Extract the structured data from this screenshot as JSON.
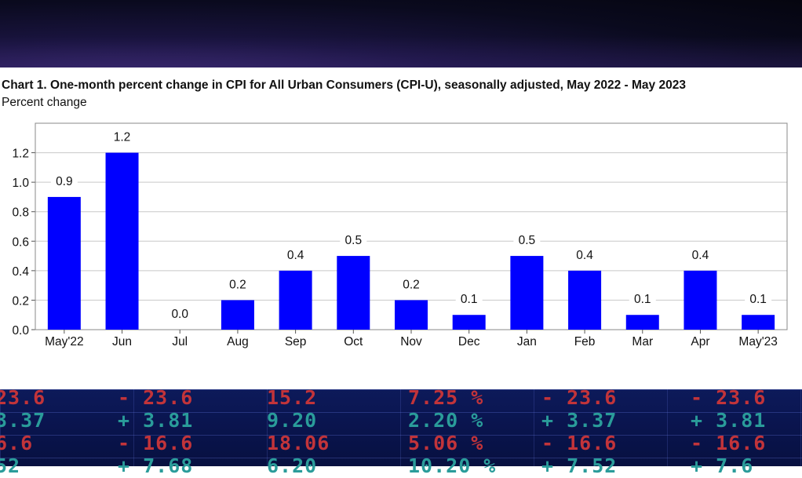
{
  "chart_data": {
    "type": "bar",
    "title": "Chart 1. One-month percent change in CPI for All Urban Consumers (CPI-U), seasonally adjusted, May 2022 - May 2023",
    "ylabel": "Percent change",
    "xlabel": "",
    "categories": [
      "May'22",
      "Jun",
      "Jul",
      "Aug",
      "Sep",
      "Oct",
      "Nov",
      "Dec",
      "Jan",
      "Feb",
      "Mar",
      "Apr",
      "May'23"
    ],
    "values": [
      0.9,
      1.2,
      0.0,
      0.2,
      0.4,
      0.5,
      0.2,
      0.1,
      0.5,
      0.4,
      0.1,
      0.4,
      0.1
    ],
    "data_labels": [
      "0.9",
      "1.2",
      "0.0",
      "0.2",
      "0.4",
      "0.5",
      "0.2",
      "0.1",
      "0.5",
      "0.4",
      "0.1",
      "0.4",
      "0.1"
    ],
    "ylim": [
      0,
      1.4
    ],
    "yticks": [
      "0.0",
      "0.2",
      "0.4",
      "0.6",
      "0.8",
      "1.0",
      "1.2"
    ],
    "grid": true,
    "bar_color": "#0000ff"
  },
  "ticker": {
    "rows": [
      [
        {
          "text": "23.6",
          "c": "red"
        },
        {
          "text": "- 23.6",
          "c": "red"
        },
        {
          "text": "15.2",
          "c": "red"
        },
        {
          "text": "7.25 %",
          "c": "red"
        },
        {
          "text": "- 23.6",
          "c": "red"
        },
        {
          "text": "- 23.6",
          "c": "red"
        }
      ],
      [
        {
          "text": "3.37",
          "c": "teal"
        },
        {
          "text": "+ 3.81",
          "c": "teal"
        },
        {
          "text": "9.20",
          "c": "teal"
        },
        {
          "text": "2.20 %",
          "c": "teal"
        },
        {
          "text": "+ 3.37",
          "c": "teal"
        },
        {
          "text": "+ 3.81",
          "c": "teal"
        }
      ],
      [
        {
          "text": "6.6",
          "c": "red"
        },
        {
          "text": "- 16.6",
          "c": "red"
        },
        {
          "text": "18.06",
          "c": "red"
        },
        {
          "text": "5.06 %",
          "c": "red"
        },
        {
          "text": "- 16.6",
          "c": "red"
        },
        {
          "text": "- 16.6",
          "c": "red"
        }
      ],
      [
        {
          "text": "52",
          "c": "teal"
        },
        {
          "text": "+ 7.68",
          "c": "teal"
        },
        {
          "text": "6.20",
          "c": "teal"
        },
        {
          "text": "10.20 %",
          "c": "teal"
        },
        {
          "text": "+ 7.52",
          "c": "teal"
        },
        {
          "text": "+ 7.6",
          "c": "teal"
        }
      ]
    ]
  }
}
